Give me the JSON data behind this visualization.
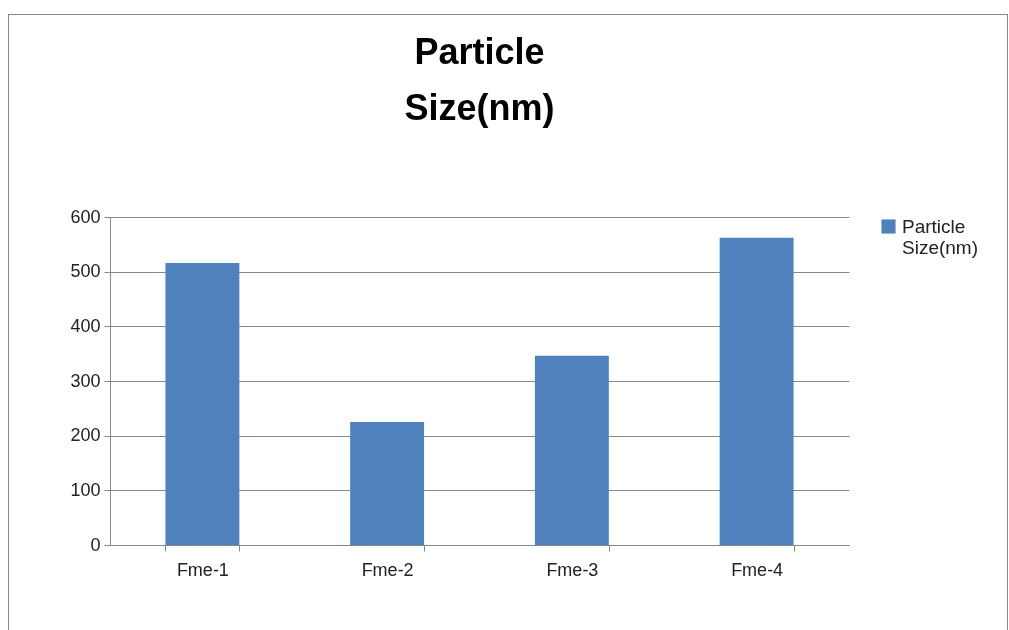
{
  "chart_data": {
    "type": "bar",
    "title": "Particle Size(nm)",
    "categories": [
      "Fme-1",
      "Fme-2",
      "Fme-3",
      "Fme-4"
    ],
    "series": [
      {
        "name": "Particle Size(nm)",
        "color": "#4f81bd",
        "values": [
          516,
          225,
          346,
          562
        ]
      }
    ],
    "ylim": [
      0,
      600
    ],
    "yticks": [
      0,
      100,
      200,
      300,
      400,
      500,
      600
    ],
    "grid": "y",
    "legend": "right"
  }
}
